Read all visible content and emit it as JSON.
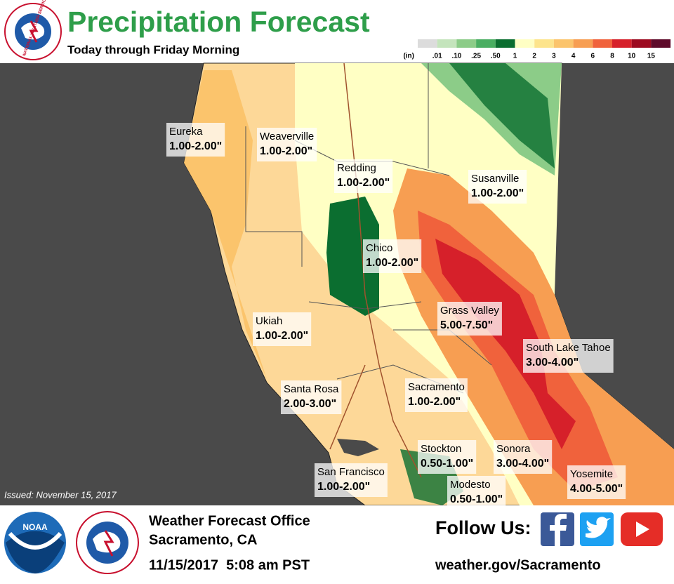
{
  "header": {
    "title": "Precipitation Forecast",
    "subtitle": "Today through Friday Morning",
    "logo_text": "NATIONAL WEATHER SERVICE"
  },
  "legend": {
    "unit": "(in)",
    "labels": [
      ".01",
      ".10",
      ".25",
      ".50",
      "1",
      "2",
      "3",
      "4",
      "6",
      "8",
      "10",
      "15"
    ],
    "colors": [
      "#dcdcdc",
      "#c4e4bc",
      "#8ccc88",
      "#4aae62",
      "#0b6e30",
      "#ffffc4",
      "#fde48c",
      "#fbc46c",
      "#f79e52",
      "#f0623c",
      "#d6202a",
      "#9c0a20",
      "#5e0a2a"
    ]
  },
  "cities": [
    {
      "name": "Eureka",
      "range": "1.00-2.00\""
    },
    {
      "name": "Weaverville",
      "range": "1.00-2.00\""
    },
    {
      "name": "Redding",
      "range": "1.00-2.00\""
    },
    {
      "name": "Susanville",
      "range": "1.00-2.00\""
    },
    {
      "name": "Chico",
      "range": "1.00-2.00\""
    },
    {
      "name": "Grass Valley",
      "range": "5.00-7.50\""
    },
    {
      "name": "Ukiah",
      "range": "1.00-2.00\""
    },
    {
      "name": "South Lake Tahoe",
      "range": "3.00-4.00\""
    },
    {
      "name": "Santa Rosa",
      "range": "2.00-3.00\""
    },
    {
      "name": "Sacramento",
      "range": "1.00-2.00\""
    },
    {
      "name": "Stockton",
      "range": "0.50-1.00\""
    },
    {
      "name": "Sonora",
      "range": "3.00-4.00\""
    },
    {
      "name": "San Francisco",
      "range": "1.00-2.00\""
    },
    {
      "name": "Modesto",
      "range": "0.50-1.00\""
    },
    {
      "name": "Yosemite",
      "range": "4.00-5.00\""
    }
  ],
  "issued": "Issued: November 15, 2017",
  "footer": {
    "noaa": "NOAA",
    "office": "Weather Forecast Office",
    "location": "Sacramento, CA",
    "timestamp": "11/15/2017  5:08 am PST",
    "follow": "Follow Us:",
    "url": "weather.gov/Sacramento"
  }
}
